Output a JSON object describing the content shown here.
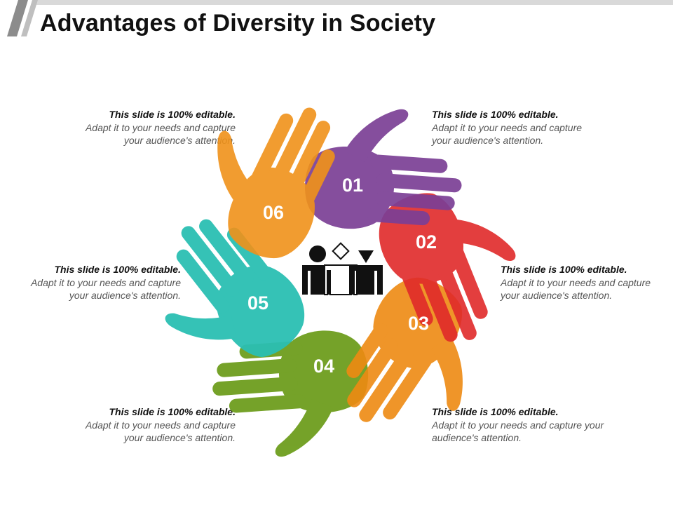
{
  "title": "Advantages of Diversity in Society",
  "colors": {
    "purple": "#7B3F95",
    "red": "#E02A2A",
    "orange": "#EE8A12",
    "green": "#6E9E1E",
    "teal": "#2BBFB3",
    "amber": "#F0921A",
    "icon": "#111111"
  },
  "center_icon": "diverse-group-people-icon",
  "items": [
    {
      "number": "01",
      "color": "#7B3F95",
      "heading": "This slide is 100% editable.",
      "body": "Adapt it to your needs and capture your audience's attention."
    },
    {
      "number": "02",
      "color": "#E02A2A",
      "heading": "This slide is 100% editable.",
      "body": "Adapt it to your needs and capture your audience's attention."
    },
    {
      "number": "03",
      "color": "#EE8A12",
      "heading": "This slide is 100% editable.",
      "body": "Adapt it to your needs and capture your audience's attention."
    },
    {
      "number": "04",
      "color": "#6E9E1E",
      "heading": "This slide is 100% editable.",
      "body": "Adapt it to your needs and capture your audience's attention."
    },
    {
      "number": "05",
      "color": "#2BBFB3",
      "heading": "This slide is 100% editable.",
      "body": "Adapt it to your needs and capture your audience's attention."
    },
    {
      "number": "06",
      "color": "#F0921A",
      "heading": "This slide is 100% editable.",
      "body": "Adapt it to your needs and capture your audience's attention."
    }
  ]
}
